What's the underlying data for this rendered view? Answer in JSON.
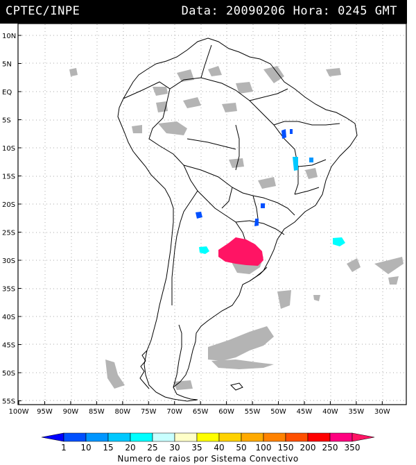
{
  "header": {
    "source": "CPTEC/INPE",
    "data_label": "Data:",
    "date": "20090206",
    "hora_label": "Hora:",
    "time": "0245",
    "tz": "GMT"
  },
  "axes": {
    "lat_labels": [
      "10N",
      "5N",
      "EQ",
      "5S",
      "10S",
      "15S",
      "20S",
      "25S",
      "30S",
      "35S",
      "40S",
      "45S",
      "50S",
      "55S"
    ],
    "lon_labels": [
      "100W",
      "95W",
      "90W",
      "85W",
      "80W",
      "75W",
      "70W",
      "65W",
      "60W",
      "55W",
      "50W",
      "45W",
      "40W",
      "35W",
      "30W"
    ]
  },
  "legend": {
    "values": [
      "1",
      "10",
      "15",
      "20",
      "25",
      "30",
      "35",
      "40",
      "50",
      "100",
      "150",
      "200",
      "250",
      "350"
    ],
    "colors": [
      "#0000ff",
      "#0050ff",
      "#0096ff",
      "#00c8ff",
      "#00ffff",
      "#c8ffff",
      "#ffffc8",
      "#ffff00",
      "#ffd200",
      "#ffaa00",
      "#ff8200",
      "#ff5000",
      "#ff0000",
      "#ff0080",
      "#ff1464"
    ],
    "caption": "Numero de raios por Sistema Convectivo"
  },
  "colors": {
    "land_outline": "#000000",
    "cloud_gray": "#b4b4b4",
    "system_magenta": "#ff1464",
    "system_cyan": "#00ffff",
    "system_blue": "#0050ff"
  }
}
